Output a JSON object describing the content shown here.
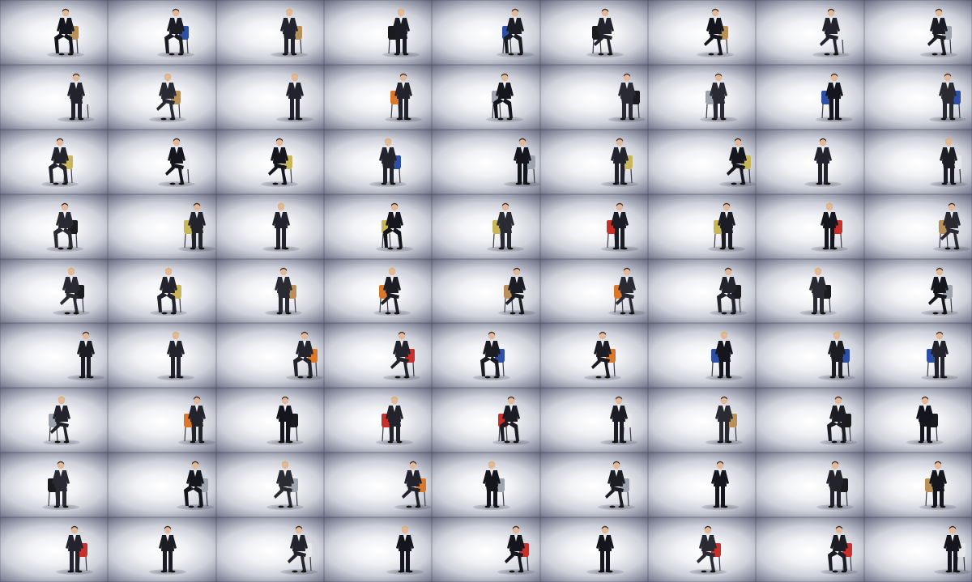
{
  "image": {
    "kind": "photo-mosaic",
    "description_tags": [
      "portrait-grid",
      "studio-backdrop",
      "seated-business-portraits"
    ],
    "rows": 9,
    "columns": 9,
    "backdrop_colors": {
      "center": "#ffffff",
      "edge": "#5a5d70"
    },
    "suit_colors": [
      "#1c1c24",
      "#22232d",
      "#2a2a33",
      "#15161d"
    ],
    "chair_colors": {
      "blue": "#2d4fa6",
      "red": "#c8302c",
      "orange": "#d9782a",
      "wood": "#b8915a",
      "gray": "#9ea3ad",
      "black": "#1a1a1f",
      "yellow": "#c9b55a",
      "white": "#e6e7ea"
    }
  }
}
